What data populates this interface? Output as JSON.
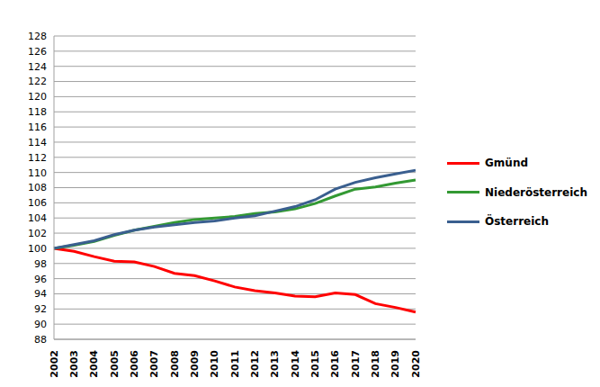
{
  "chart_data": {
    "type": "line",
    "categories": [
      "2002",
      "2003",
      "2004",
      "2005",
      "2006",
      "2007",
      "2008",
      "2009",
      "2010",
      "2011",
      "2012",
      "2013",
      "2014",
      "2015",
      "2016",
      "2017",
      "2018",
      "2019",
      "2020"
    ],
    "series": [
      {
        "name": "Gmünd",
        "color": "#ff0000",
        "values": [
          100,
          99.6,
          98.9,
          98.3,
          98.2,
          97.6,
          96.7,
          96.4,
          95.7,
          94.9,
          94.4,
          94.1,
          93.7,
          93.6,
          94.1,
          93.9,
          92.7,
          92.2,
          91.6
        ]
      },
      {
        "name": "Niederösterreich",
        "color": "#339933",
        "values": [
          100,
          100.4,
          100.9,
          101.7,
          102.4,
          102.9,
          103.4,
          103.8,
          104.0,
          104.2,
          104.6,
          104.8,
          105.2,
          105.9,
          106.9,
          107.8,
          108.1,
          108.6,
          109.0
        ]
      },
      {
        "name": "Österreich",
        "color": "#3a5f8f",
        "values": [
          100,
          100.5,
          101.0,
          101.8,
          102.4,
          102.8,
          103.1,
          103.4,
          103.6,
          104.0,
          104.3,
          104.9,
          105.5,
          106.4,
          107.8,
          108.7,
          109.3,
          109.8,
          110.3
        ]
      }
    ],
    "ylim": [
      88,
      128
    ],
    "yticks": [
      88,
      90,
      92,
      94,
      96,
      98,
      100,
      102,
      104,
      106,
      108,
      110,
      112,
      114,
      116,
      118,
      120,
      122,
      124,
      126,
      128
    ],
    "grid": true,
    "legend": "right"
  }
}
